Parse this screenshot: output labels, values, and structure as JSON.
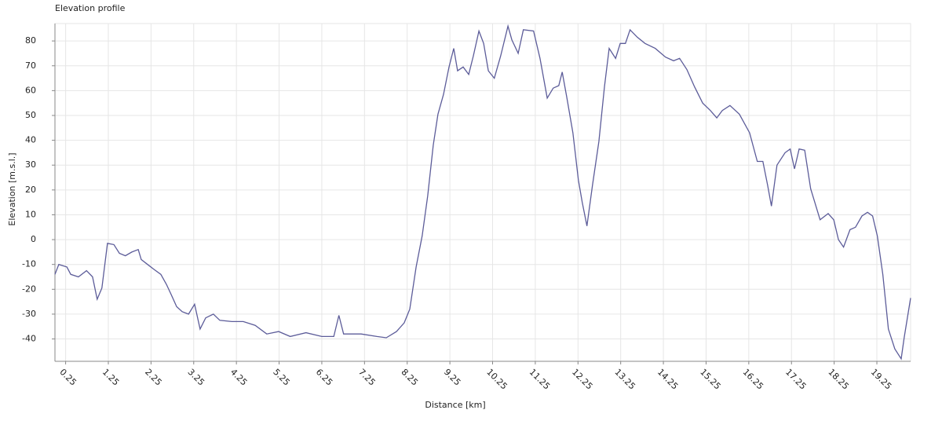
{
  "chart_data": {
    "type": "line",
    "title": "Elevation profile",
    "x_label": "Distance [km]",
    "y_label": "Elevation [m.s.l.]",
    "x": [
      0,
      0.09,
      0.28,
      0.37,
      0.55,
      0.74,
      0.88,
      0.99,
      1.1,
      1.23,
      1.38,
      1.51,
      1.65,
      1.8,
      1.95,
      2.02,
      2.17,
      2.32,
      2.48,
      2.61,
      2.72,
      2.85,
      2.98,
      3.13,
      3.27,
      3.4,
      3.53,
      3.71,
      3.86,
      4.14,
      4.41,
      4.69,
      4.96,
      5.24,
      5.51,
      5.88,
      6.25,
      6.53,
      6.65,
      6.76,
      7.17,
      7.54,
      7.76,
      8.0,
      8.18,
      8.31,
      8.46,
      8.6,
      8.73,
      8.86,
      8.97,
      9.1,
      9.23,
      9.34,
      9.43,
      9.56,
      9.69,
      9.8,
      9.93,
      10.04,
      10.15,
      10.29,
      10.44,
      10.61,
      10.7,
      10.85,
      10.97,
      11.21,
      11.36,
      11.53,
      11.67,
      11.8,
      11.88,
      11.99,
      12.13,
      12.26,
      12.35,
      12.46,
      12.59,
      12.74,
      12.87,
      12.98,
      13.13,
      13.24,
      13.36,
      13.47,
      13.64,
      13.82,
      14.06,
      14.3,
      14.49,
      14.63,
      14.8,
      14.98,
      15.17,
      15.35,
      15.5,
      15.63,
      15.81,
      16.03,
      16.27,
      16.45,
      16.58,
      16.69,
      16.78,
      16.91,
      17.1,
      17.22,
      17.32,
      17.43,
      17.56,
      17.7,
      17.92,
      18.11,
      18.24,
      18.35,
      18.47,
      18.62,
      18.75,
      18.9,
      19.03,
      19.15,
      19.26,
      19.39,
      19.52,
      19.67,
      19.82,
      19.89,
      20.04
    ],
    "values": [
      -14,
      -10,
      -11,
      -14,
      -15,
      -12.5,
      -15,
      -24,
      -19.5,
      -1.5,
      -2,
      -5.5,
      -6.5,
      -5,
      -4,
      -8,
      -10,
      -12,
      -14,
      -18,
      -22,
      -27,
      -29,
      -30,
      -26,
      -36,
      -31.5,
      -30,
      -32.5,
      -33,
      -33,
      -34.5,
      -38,
      -37,
      -39,
      -37.5,
      -39,
      -39,
      -30.5,
      -38,
      -38,
      -39,
      -39.5,
      -37,
      -33.5,
      -28,
      -11,
      1.5,
      17.5,
      38,
      50.5,
      58.5,
      69.5,
      77,
      68,
      69.5,
      66.5,
      74,
      84,
      79,
      68,
      65,
      74,
      86,
      80.5,
      75,
      84.5,
      84,
      73,
      57,
      61,
      62,
      67.5,
      57,
      43,
      24,
      15,
      5.5,
      22,
      39.5,
      61.5,
      77,
      73,
      79,
      79,
      84.5,
      81.5,
      79,
      77,
      73.5,
      72,
      73,
      68.5,
      61.5,
      55,
      52,
      49,
      52,
      54,
      50.5,
      43,
      31.5,
      31.5,
      22,
      13.5,
      30,
      35,
      36.5,
      28.5,
      36.5,
      36,
      20.5,
      8,
      10.5,
      8,
      0,
      -3,
      4,
      5,
      9.5,
      11,
      9.5,
      1.5,
      -14,
      -36,
      -44,
      -48,
      -39.5,
      -23.5
    ],
    "color": "#5c5c99",
    "xlim": [
      0,
      20.04
    ],
    "ylim": [
      -49,
      87
    ],
    "xticks": [
      0.25,
      1.25,
      2.25,
      3.25,
      4.25,
      5.25,
      6.25,
      7.25,
      8.25,
      9.25,
      10.25,
      11.25,
      12.25,
      13.25,
      14.25,
      15.25,
      16.25,
      17.25,
      18.25,
      19.25
    ],
    "yticks": [
      -40,
      -30,
      -20,
      -10,
      0,
      10,
      20,
      30,
      40,
      50,
      60,
      70,
      80
    ],
    "grid": true
  }
}
